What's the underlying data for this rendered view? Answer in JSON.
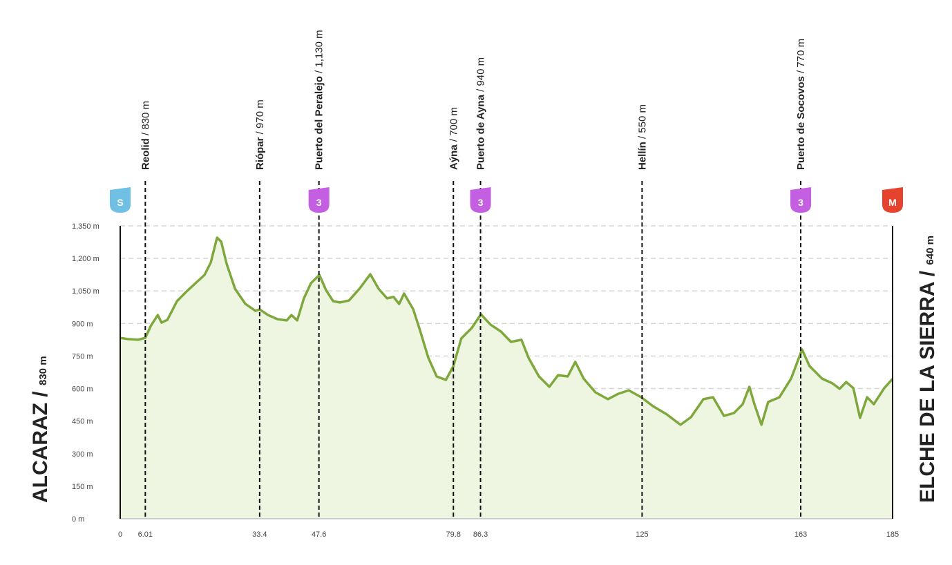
{
  "chart_data": {
    "type": "elevation",
    "x": [
      0,
      1.8,
      4.3,
      6.0,
      7.3,
      9.0,
      9.9,
      11.3,
      13.6,
      15.9,
      18.4,
      20.2,
      21.7,
      23.2,
      24.2,
      25.5,
      27.5,
      30.0,
      32.4,
      33.4,
      35.4,
      37.7,
      39.9,
      41.0,
      42.4,
      44.0,
      45.7,
      47.7,
      49.3,
      51.0,
      52.6,
      54.8,
      57.3,
      59.9,
      61.9,
      63.9,
      65.5,
      66.8,
      68.0,
      70.2,
      71.8,
      73.8,
      75.8,
      78.0,
      79.8,
      81.7,
      84.2,
      86.4,
      88.7,
      91.2,
      93.6,
      96.1,
      97.8,
      100.3,
      102.8,
      104.9,
      107.2,
      109.0,
      111.0,
      113.8,
      116.8,
      119.3,
      121.8,
      124.8,
      127.6,
      130.9,
      134.2,
      136.7,
      139.7,
      142.0,
      144.6,
      147.0,
      149.1,
      150.7,
      151.9,
      153.6,
      155.2,
      157.9,
      160.7,
      163.3,
      165.1,
      168.1,
      170.6,
      172.3,
      173.9,
      175.6,
      177.2,
      178.9,
      180.5,
      183.0,
      185
    ],
    "values": [
      834,
      828,
      825,
      834,
      888,
      939,
      904,
      917,
      1003,
      1048,
      1092,
      1124,
      1181,
      1296,
      1277,
      1175,
      1060,
      990,
      958,
      965,
      939,
      920,
      914,
      939,
      914,
      1016,
      1086,
      1124,
      1054,
      1003,
      997,
      1006,
      1060,
      1127,
      1060,
      1016,
      1022,
      990,
      1038,
      965,
      869,
      742,
      656,
      640,
      704,
      831,
      879,
      942,
      895,
      863,
      815,
      825,
      742,
      656,
      608,
      662,
      656,
      723,
      646,
      583,
      551,
      576,
      592,
      560,
      519,
      481,
      433,
      468,
      551,
      560,
      474,
      487,
      528,
      608,
      528,
      433,
      538,
      560,
      646,
      780,
      704,
      646,
      624,
      599,
      630,
      602,
      465,
      560,
      528,
      602,
      645
    ],
    "color": "#7ea83c",
    "fill": "#eef5e1",
    "xlim": [
      0,
      185
    ],
    "xticks": [
      0,
      6.01,
      33.4,
      47.6,
      79.8,
      86.3,
      125,
      163,
      185
    ],
    "ylim": [
      0,
      1350
    ],
    "yticks": [
      {
        "value": 0,
        "label": "0 m"
      },
      {
        "value": 150,
        "label": "150 m"
      },
      {
        "value": 300,
        "label": "300 m"
      },
      {
        "value": 450,
        "label": "450 m"
      },
      {
        "value": 600,
        "label": "600 m"
      },
      {
        "value": 750,
        "label": "750 m"
      },
      {
        "value": 900,
        "label": "900 m"
      },
      {
        "value": 1050,
        "label": "1,050 m"
      },
      {
        "value": 1200,
        "label": "1,200 m"
      },
      {
        "value": 1350,
        "label": "1,350 m"
      }
    ],
    "grid": true,
    "waypoints": [
      {
        "x": 6.01,
        "name": "Reolid",
        "altitude": "/ 830 m"
      },
      {
        "x": 33.4,
        "name": "Riópar",
        "altitude": "/ 970 m"
      },
      {
        "x": 47.6,
        "name": "Puerto del Peralejo",
        "altitude": "/ 1,130 m"
      },
      {
        "x": 79.8,
        "name": "Aýna",
        "altitude": "/ 700 m"
      },
      {
        "x": 86.3,
        "name": "Puerto de Ayna",
        "altitude": "/ 940 m"
      },
      {
        "x": 125,
        "name": "Hellín",
        "altitude": "/ 550 m"
      },
      {
        "x": 163,
        "name": "Puerto de Socovos",
        "altitude": "/ 770 m"
      }
    ],
    "badges": [
      {
        "x": 0,
        "label": "S",
        "color": "#6fc0e4"
      },
      {
        "x": 47.6,
        "label": "3",
        "color": "#c35fe0"
      },
      {
        "x": 86.3,
        "label": "3",
        "color": "#c35fe0"
      },
      {
        "x": 163,
        "label": "3",
        "color": "#c35fe0"
      },
      {
        "x": 185,
        "label": "M",
        "color": "#e6432e"
      }
    ],
    "start": {
      "name": "ALCARAZ /",
      "altitude": "830 m"
    },
    "finish": {
      "name": "ELCHE DE LA SIERRA /",
      "altitude": "640 m"
    }
  }
}
